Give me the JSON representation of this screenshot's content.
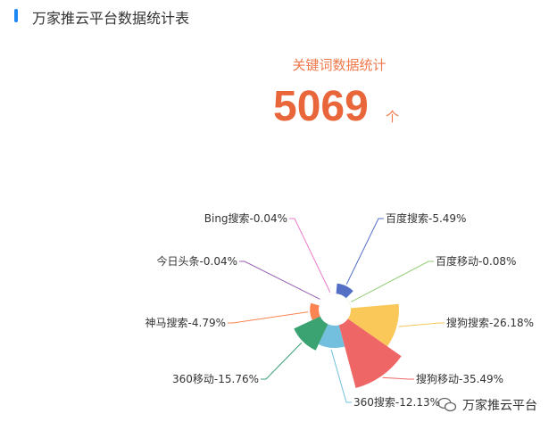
{
  "header": {
    "title": "万家推云平台数据统计表",
    "accent": "#1e88f5"
  },
  "summary": {
    "label": "关键词数据统计",
    "total": "5069",
    "unit": "个"
  },
  "watermark": {
    "text": "万家推云平台",
    "icon": "wechat-icon"
  },
  "chart_data": {
    "type": "pie",
    "rose": true,
    "categories": [
      "百度搜索",
      "百度移动",
      "搜狗搜索",
      "搜狗移动",
      "360搜索",
      "360移动",
      "神马搜索",
      "今日头条",
      "Bing搜索"
    ],
    "values": [
      5.49,
      0.08,
      26.18,
      35.49,
      12.13,
      15.76,
      4.79,
      0.04,
      0.04
    ],
    "labels": [
      "百度搜索-5.49%",
      "百度移动-0.08%",
      "搜狗搜索-26.18%",
      "搜狗移动-35.49%",
      "360搜索-12.13%",
      "360移动-15.76%",
      "神马搜索-4.79%",
      "今日头条-0.04%",
      "Bing搜索-0.04%"
    ],
    "colors": [
      "#5470c6",
      "#91cc75",
      "#fac858",
      "#ee6666",
      "#73c0de",
      "#3ba272",
      "#fc8452",
      "#9a60b4",
      "#ea7ccc"
    ]
  }
}
